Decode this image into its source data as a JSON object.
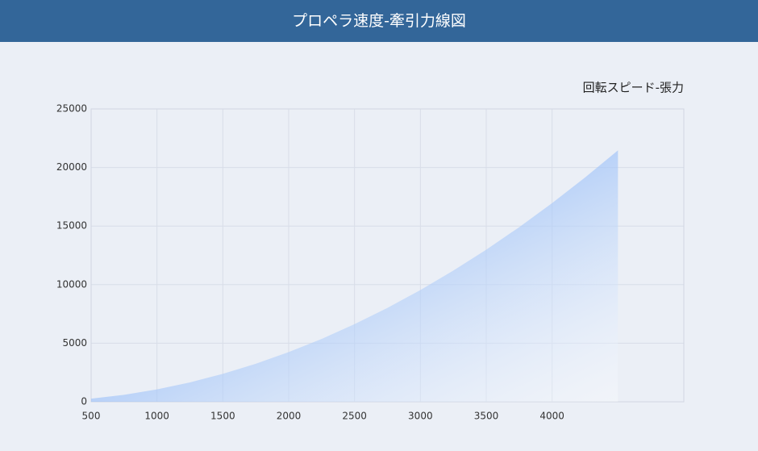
{
  "header": {
    "title": "プロペラ速度-牽引力線図"
  },
  "chart_data": {
    "type": "area",
    "legend": "top-right",
    "x": [
      500,
      750,
      1000,
      1250,
      1500,
      1750,
      2000,
      2250,
      2500,
      2750,
      3000,
      3250,
      3500,
      3750,
      4000,
      4250,
      4500
    ],
    "series": [
      {
        "name": "回転スピード-張力",
        "color": "#4d8ff5",
        "values": [
          265,
          596,
          1060,
          1656,
          2385,
          3246,
          4240,
          5366,
          6625,
          8016,
          9540,
          11196,
          12985,
          14906,
          16960,
          19146,
          21465
        ]
      }
    ],
    "xlim": [
      500,
      5000
    ],
    "xticks": [
      500,
      1000,
      1500,
      2000,
      2500,
      3000,
      3500,
      4000
    ],
    "ylim": [
      0,
      25000
    ],
    "yticks": [
      0,
      5000,
      10000,
      15000,
      20000,
      25000
    ],
    "grid": true
  }
}
